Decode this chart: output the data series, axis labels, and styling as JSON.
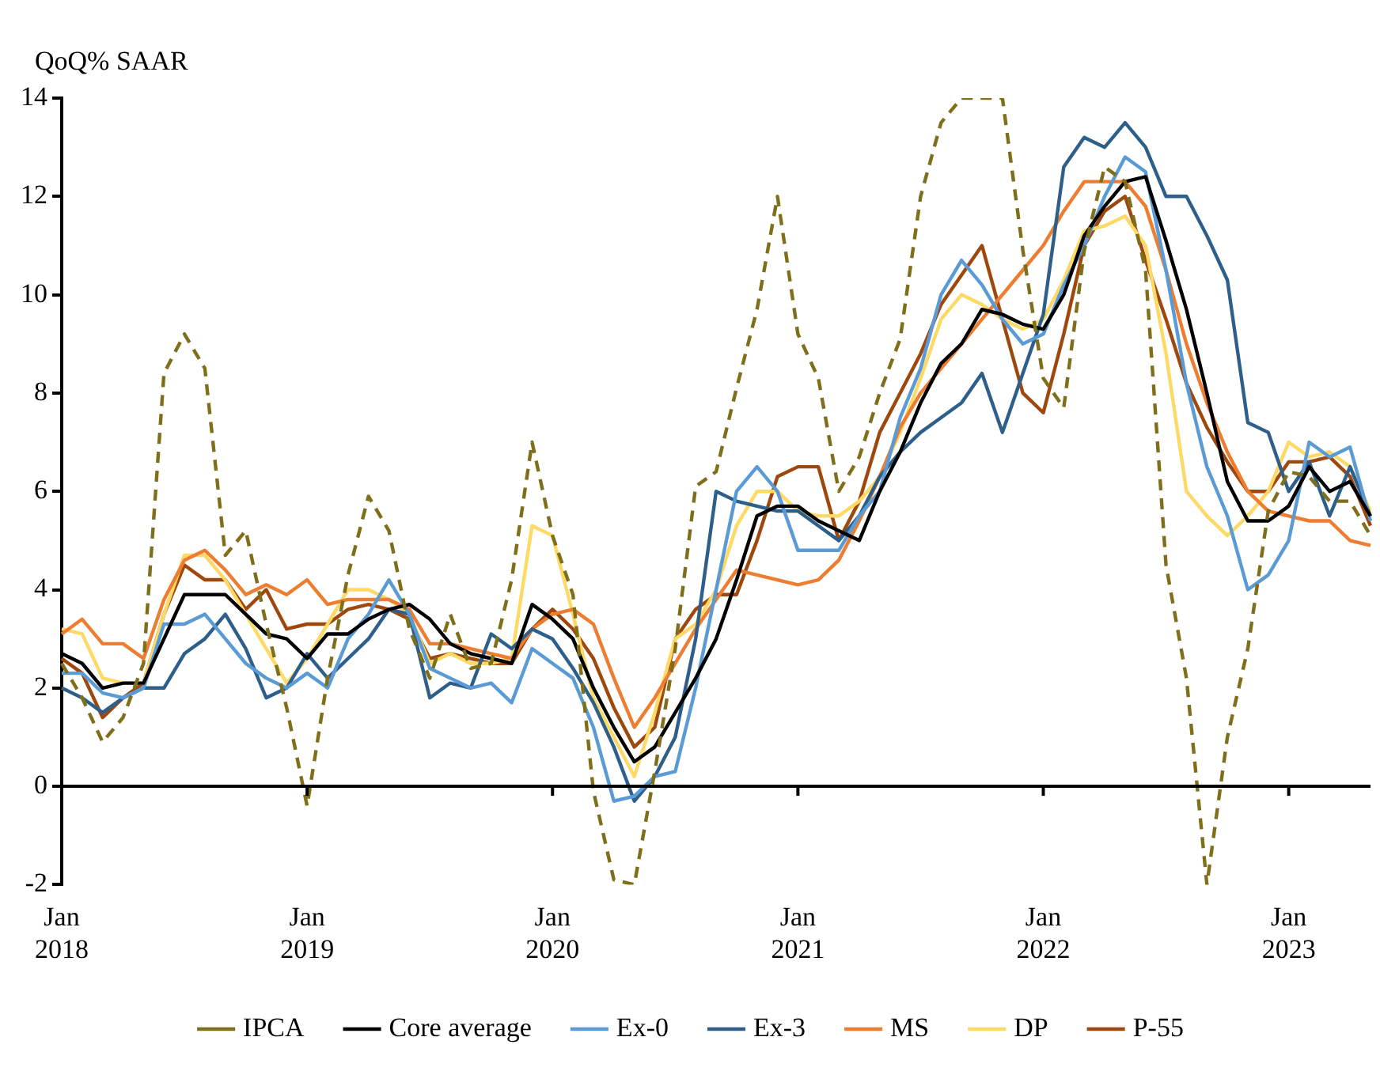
{
  "chart_data": {
    "type": "line",
    "ylabel": "QoQ% SAAR",
    "categories": [
      "Jan 2018",
      null,
      null,
      null,
      null,
      null,
      null,
      null,
      null,
      null,
      null,
      null,
      "Jan 2019",
      null,
      null,
      null,
      null,
      null,
      null,
      null,
      null,
      null,
      null,
      null,
      "Jan 2020",
      null,
      null,
      null,
      null,
      null,
      null,
      null,
      null,
      null,
      null,
      null,
      "Jan 2021",
      null,
      null,
      null,
      null,
      null,
      null,
      null,
      null,
      null,
      null,
      null,
      "Jan 2022",
      null,
      null,
      null,
      null,
      null,
      null,
      null,
      null,
      null,
      null,
      null,
      "Jan 2023",
      null,
      null,
      null,
      null
    ],
    "ylim": [
      -2,
      14
    ],
    "yticks": [
      -2,
      0,
      2,
      4,
      6,
      8,
      10,
      12,
      14
    ],
    "legend": "bottom",
    "series": [
      {
        "name": "IPCA",
        "color": "#7f6f1a",
        "line_style": "dashed",
        "values": [
          2.5,
          1.8,
          0.9,
          1.4,
          2.5,
          8.4,
          9.2,
          8.5,
          4.7,
          5.2,
          3.3,
          1.6,
          -0.4,
          2.2,
          4.3,
          5.9,
          5.2,
          3.2,
          2.2,
          3.5,
          2.4,
          2.5,
          4.2,
          7.0,
          5.1,
          3.9,
          -0.1,
          -1.9,
          -2,
          0.3,
          2.8,
          6.1,
          6.4,
          8.1,
          9.7,
          12.0,
          9.2,
          8.3,
          6.0,
          6.7,
          8.0,
          9.1,
          12.0,
          13.5,
          14,
          14,
          14,
          10.9,
          8.3,
          7.7,
          10.9,
          12.6,
          12.3,
          10.5,
          4.5,
          2.2,
          -2,
          1.0,
          2.8,
          5.6,
          6.4,
          6.3,
          5.8,
          5.8,
          5.1
        ]
      },
      {
        "name": "Core average",
        "color": "#000000",
        "values": [
          2.7,
          2.5,
          2.0,
          2.1,
          2.1,
          3.0,
          3.9,
          3.9,
          3.9,
          3.5,
          3.1,
          3.0,
          2.6,
          3.1,
          3.1,
          3.4,
          3.6,
          3.7,
          3.4,
          2.9,
          2.7,
          2.6,
          2.5,
          3.7,
          3.4,
          3.0,
          2.0,
          1.2,
          0.5,
          0.8,
          1.5,
          2.2,
          3.0,
          4.2,
          5.5,
          5.7,
          5.7,
          5.4,
          5.2,
          5.0,
          6.0,
          6.8,
          7.8,
          8.6,
          9.0,
          9.7,
          9.6,
          9.4,
          9.3,
          10.0,
          11.2,
          11.8,
          12.3,
          12.4,
          11.1,
          9.7,
          8.0,
          6.2,
          5.4,
          5.4,
          5.7,
          6.5,
          6.0,
          6.2,
          5.5
        ]
      },
      {
        "name": "Ex-0",
        "color": "#5b9bd5",
        "values": [
          2.3,
          2.3,
          1.9,
          1.8,
          2.0,
          3.3,
          3.3,
          3.5,
          3.0,
          2.5,
          2.2,
          2.0,
          2.3,
          2.0,
          3.0,
          3.5,
          4.2,
          3.5,
          2.4,
          2.2,
          2.0,
          2.1,
          1.7,
          2.8,
          2.5,
          2.2,
          1.2,
          -0.3,
          -0.2,
          0.2,
          0.3,
          2.0,
          4.0,
          6.0,
          6.5,
          6.0,
          4.8,
          4.8,
          4.8,
          5.5,
          6.0,
          7.5,
          8.5,
          10.0,
          10.7,
          10.2,
          9.5,
          9.0,
          9.2,
          10.2,
          11.0,
          12.0,
          12.8,
          12.5,
          10.5,
          8.2,
          6.5,
          5.5,
          4.0,
          4.3,
          5.0,
          7.0,
          6.7,
          6.9,
          5.4
        ]
      },
      {
        "name": "Ex-3",
        "color": "#2e5f8a",
        "values": [
          2.0,
          1.8,
          1.5,
          1.8,
          2.0,
          2.0,
          2.7,
          3.0,
          3.5,
          2.8,
          1.8,
          2.0,
          2.7,
          2.2,
          2.6,
          3.0,
          3.6,
          3.5,
          1.8,
          2.1,
          2.0,
          3.1,
          2.8,
          3.2,
          3.0,
          2.4,
          1.7,
          0.8,
          -0.3,
          0.2,
          1.0,
          3.0,
          6.0,
          5.8,
          5.7,
          5.6,
          5.6,
          5.3,
          5.0,
          5.5,
          6.3,
          6.8,
          7.2,
          7.5,
          7.8,
          8.4,
          7.2,
          8.4,
          9.6,
          12.6,
          13.2,
          13.0,
          13.5,
          13.0,
          12.0,
          12.0,
          11.2,
          10.3,
          7.4,
          7.2,
          6.0,
          6.6,
          5.5,
          6.5,
          5.5
        ]
      },
      {
        "name": "MS",
        "color": "#ed7d31",
        "values": [
          3.1,
          3.4,
          2.9,
          2.9,
          2.6,
          3.8,
          4.6,
          4.8,
          4.4,
          3.9,
          4.1,
          3.9,
          4.2,
          3.7,
          3.8,
          3.8,
          3.8,
          3.6,
          2.9,
          2.9,
          2.8,
          2.7,
          2.6,
          3.2,
          3.5,
          3.6,
          3.3,
          2.2,
          1.2,
          1.8,
          2.5,
          3.2,
          3.8,
          4.4,
          4.3,
          4.2,
          4.1,
          4.2,
          4.6,
          5.4,
          6.3,
          7.3,
          8.0,
          8.5,
          9.0,
          9.5,
          10.0,
          10.5,
          11.0,
          11.7,
          12.3,
          12.3,
          12.3,
          11.8,
          10.5,
          9.0,
          7.8,
          6.8,
          6.0,
          5.6,
          5.5,
          5.4,
          5.4,
          5.0,
          4.9
        ]
      },
      {
        "name": "DP",
        "color": "#ffd966",
        "values": [
          3.2,
          3.1,
          2.2,
          2.1,
          2.1,
          3.5,
          4.7,
          4.7,
          4.2,
          3.5,
          2.8,
          2.1,
          2.6,
          3.3,
          4.0,
          4.0,
          3.8,
          3.5,
          2.5,
          2.7,
          2.5,
          2.5,
          2.6,
          5.3,
          5.1,
          3.5,
          1.8,
          1.0,
          0.2,
          1.5,
          3.0,
          3.3,
          4.0,
          5.3,
          6.0,
          6.0,
          5.6,
          5.5,
          5.5,
          5.8,
          6.3,
          7.2,
          8.3,
          9.5,
          10.0,
          9.8,
          9.5,
          9.3,
          9.5,
          10.3,
          11.3,
          11.4,
          11.6,
          11.0,
          8.8,
          6.0,
          5.5,
          5.1,
          5.5,
          6.0,
          7.0,
          6.7,
          6.8,
          6.5,
          5.6
        ]
      },
      {
        "name": "P-55",
        "color": "#9e480e",
        "values": [
          2.6,
          2.3,
          1.4,
          1.8,
          2.1,
          3.5,
          4.5,
          4.2,
          4.2,
          3.6,
          4.0,
          3.2,
          3.3,
          3.3,
          3.6,
          3.7,
          3.6,
          3.4,
          2.6,
          2.7,
          2.6,
          2.5,
          2.5,
          3.2,
          3.6,
          3.2,
          2.6,
          1.6,
          0.8,
          1.2,
          3.0,
          3.6,
          3.9,
          3.9,
          5.0,
          6.3,
          6.5,
          6.5,
          5.0,
          5.8,
          7.2,
          8.0,
          8.8,
          9.8,
          10.4,
          11.0,
          9.5,
          8.0,
          7.6,
          9.2,
          11.0,
          11.7,
          12.0,
          10.7,
          9.5,
          8.2,
          7.3,
          6.6,
          6.0,
          6.0,
          6.6,
          6.6,
          6.7,
          6.3,
          5.3
        ]
      }
    ]
  }
}
